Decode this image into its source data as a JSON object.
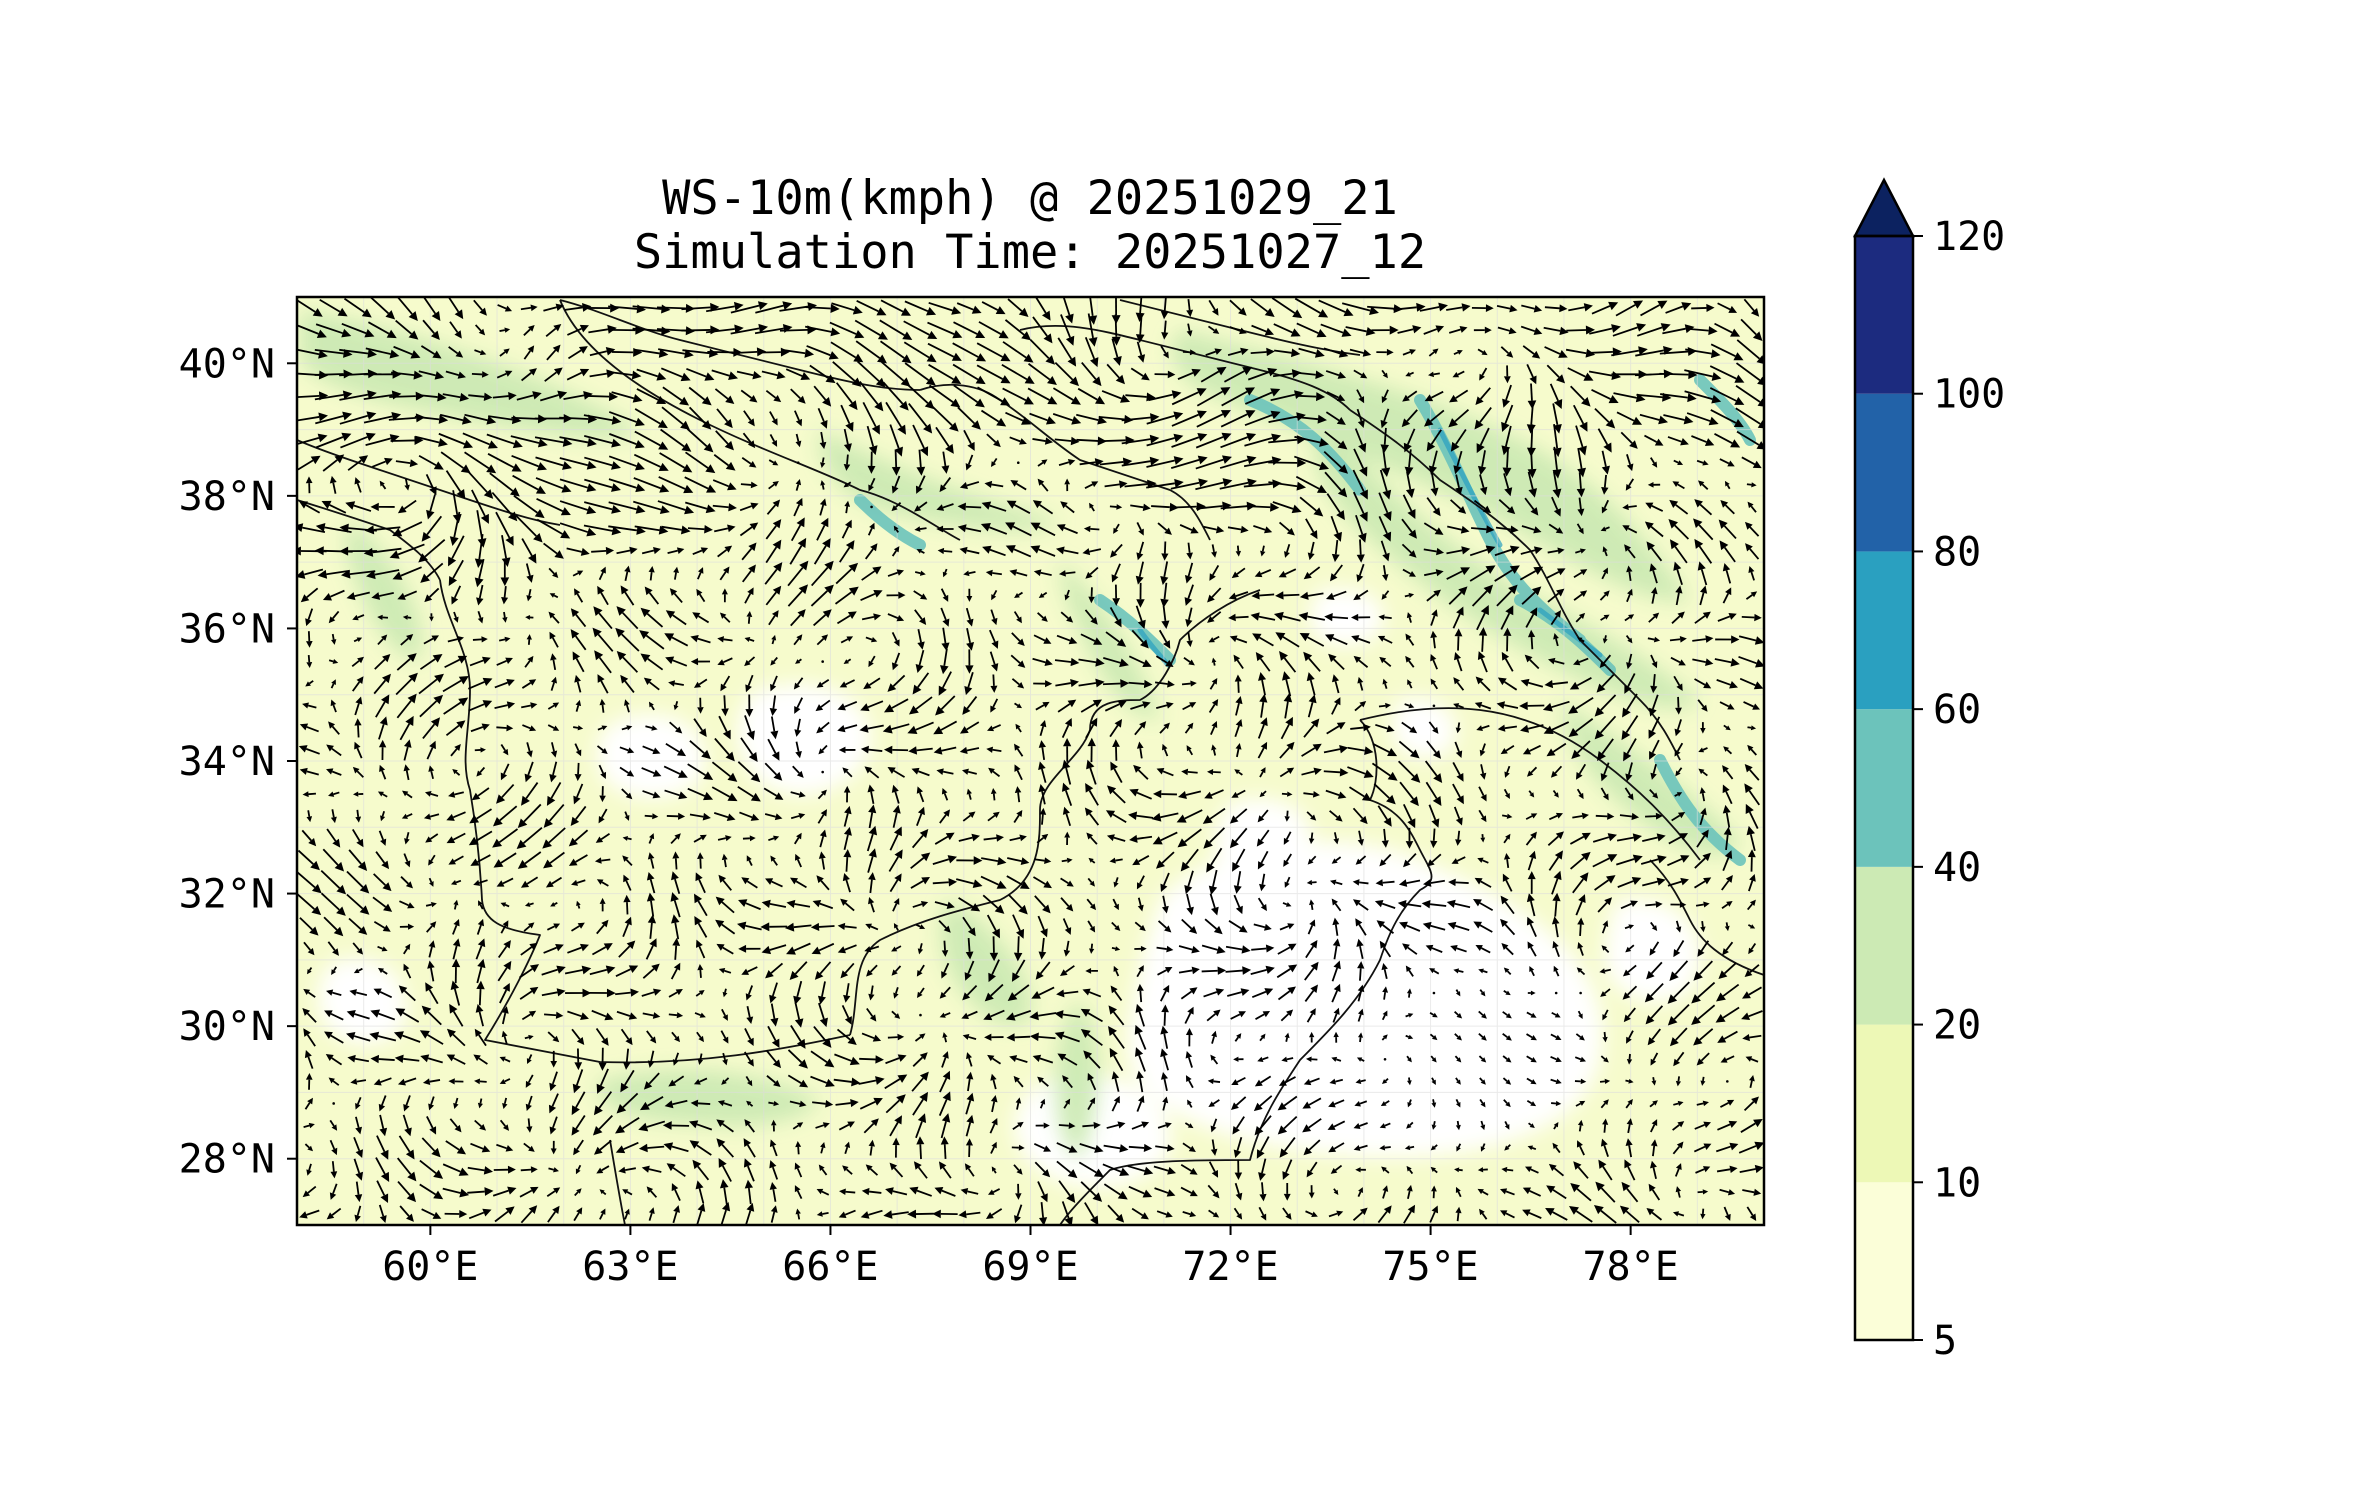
{
  "title_lines": [
    "WS-10m(kmph) @ 20251029_21",
    "Simulation Time: 20251027_12"
  ],
  "map": {
    "variable": "WS-10m(kmph)",
    "lon_range": [
      58,
      80
    ],
    "lat_range": [
      27,
      41
    ],
    "lon_ticks": [
      {
        "value": 60,
        "label": "60°E"
      },
      {
        "value": 63,
        "label": "63°E"
      },
      {
        "value": 66,
        "label": "66°E"
      },
      {
        "value": 69,
        "label": "69°E"
      },
      {
        "value": 72,
        "label": "72°E"
      },
      {
        "value": 75,
        "label": "75°E"
      },
      {
        "value": 78,
        "label": "78°E"
      }
    ],
    "lat_ticks": [
      {
        "value": 40,
        "label": "40°N"
      },
      {
        "value": 38,
        "label": "38°N"
      },
      {
        "value": 36,
        "label": "36°N"
      },
      {
        "value": 34,
        "label": "34°N"
      },
      {
        "value": 32,
        "label": "32°N"
      },
      {
        "value": 30,
        "label": "30°N"
      },
      {
        "value": 28,
        "label": "28°N"
      }
    ],
    "background_color": "#f6fbcc",
    "border_color": "#000000"
  },
  "colorbar": {
    "extend": "max",
    "extend_color": "#0c2260",
    "levels": [
      {
        "from": 5,
        "to": 10,
        "color": "#fbfed8"
      },
      {
        "from": 10,
        "to": 20,
        "color": "#edf8b6"
      },
      {
        "from": 20,
        "to": 40,
        "color": "#cceab4"
      },
      {
        "from": 40,
        "to": 60,
        "color": "#6cc3bb"
      },
      {
        "from": 60,
        "to": 80,
        "color": "#2aa0c0"
      },
      {
        "from": 80,
        "to": 100,
        "color": "#2262a8"
      },
      {
        "from": 100,
        "to": 120,
        "color": "#1c2b7f"
      }
    ],
    "tick_labels": [
      "5",
      "10",
      "20",
      "40",
      "60",
      "80",
      "120"
    ],
    "tick_labels_mid": [
      "100"
    ]
  },
  "colors": {
    "arrow": "#000000",
    "calm": "#ffffff",
    "moderate": "#cceab4",
    "strong": "#6cc3bb",
    "very_strong": "#2aa0c0"
  }
}
